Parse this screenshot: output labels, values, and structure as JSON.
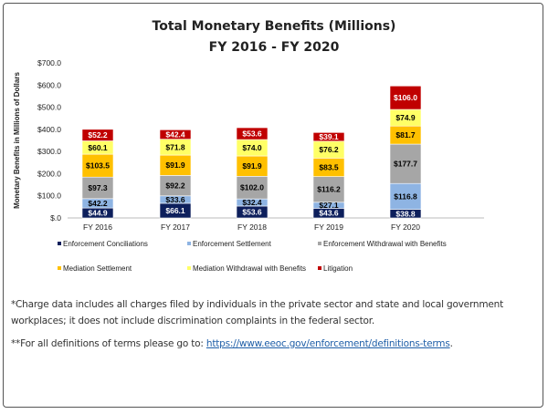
{
  "chart_data": {
    "type": "bar",
    "stacked": true,
    "title": "Total Monetary Benefits (Millions)",
    "subtitle": "FY 2016 - FY 2020",
    "xlabel": "",
    "ylabel": "Monetary Benefits in Millions of Dollars",
    "ylim": [
      0,
      700
    ],
    "yticks": [
      "$.0",
      "$100.0",
      "$200.0",
      "$300.0",
      "$400.0",
      "$500.0",
      "$600.0",
      "$700.0"
    ],
    "grid": false,
    "legend_placement": "bottom",
    "categories": [
      "FY 2016",
      "FY 2017",
      "FY 2018",
      "FY 2019",
      "FY 2020"
    ],
    "series": [
      {
        "name": "Enforcement Conciliations",
        "color": "#0d1f5c",
        "label_color": "#ffffff",
        "values": [
          44.9,
          66.1,
          53.6,
          43.6,
          38.8
        ],
        "labels": [
          "$44.9",
          "$66.1",
          "$53.6",
          "$43.6",
          "$38.8"
        ]
      },
      {
        "name": "Enforcement Settlement",
        "color": "#8eb4e3",
        "label_color": "#000000",
        "values": [
          42.2,
          33.6,
          32.4,
          27.1,
          116.8
        ],
        "labels": [
          "$42.2",
          "$33.6",
          "$32.4",
          "$27.1",
          "$116.8"
        ]
      },
      {
        "name": "Enforcement Withdrawal with Benefits",
        "color": "#a6a6a6",
        "label_color": "#000000",
        "values": [
          97.3,
          92.2,
          102.0,
          116.2,
          177.7
        ],
        "labels": [
          "$97.3",
          "$92.2",
          "$102.0",
          "$116.2",
          "$177.7"
        ]
      },
      {
        "name": "Mediation Settlement",
        "color": "#ffc000",
        "label_color": "#000000",
        "values": [
          103.5,
          91.9,
          91.9,
          83.5,
          81.7
        ],
        "labels": [
          "$103.5",
          "$91.9",
          "$91.9",
          "$83.5",
          "$81.7"
        ]
      },
      {
        "name": "Mediation Withdrawal with Benefits",
        "color": "#ffff66",
        "label_color": "#000000",
        "values": [
          60.1,
          71.8,
          74.0,
          76.2,
          74.9
        ],
        "labels": [
          "$60.1",
          "$71.8",
          "$74.0",
          "$76.2",
          "$74.9"
        ]
      },
      {
        "name": "Litigation",
        "color": "#c00000",
        "label_color": "#ffffff",
        "values": [
          52.2,
          42.4,
          53.6,
          39.1,
          106.0
        ],
        "labels": [
          "$52.2",
          "$42.4",
          "$53.6",
          "$39.1",
          "$106.0"
        ]
      }
    ]
  },
  "notes": {
    "note1": "*Charge data includes all charges filed by individuals in the private sector and state and local government workplaces; it does not include discrimination complaints in the federal sector.",
    "note2_prefix": "**For all definitions of terms please go to: ",
    "note2_link": "https://www.eeoc.gov/enforcement/definitions-terms",
    "note2_suffix": "."
  }
}
